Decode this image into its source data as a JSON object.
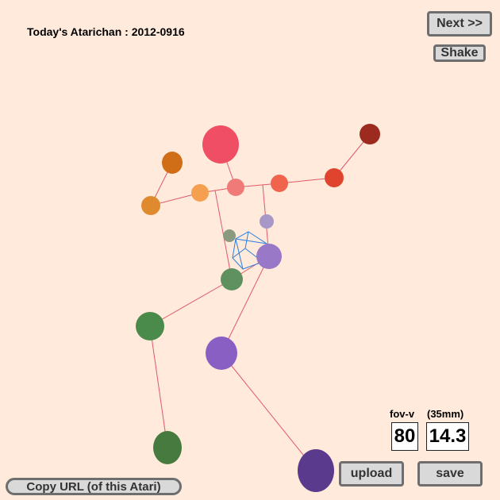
{
  "title": "Today's Atarichan : 2012-0916",
  "buttons": {
    "next": "Next >>",
    "shake": "Shake",
    "upload": "upload",
    "save": "save",
    "copy_url": "Copy URL (of this Atari)"
  },
  "camera": {
    "fov_label": "fov-v",
    "mm_label": "(35mm)",
    "fov_value": "80",
    "mm_value": "14.3"
  },
  "colors": {
    "background": "#ffeadb",
    "bone": "#e05a68",
    "cube": "#2a7fe0",
    "head": "#ef4e64",
    "right_arm": "#e8604a",
    "left_arm": "#e08a30",
    "right_leg": "#8a5fc4",
    "left_leg": "#4a8a4a"
  }
}
